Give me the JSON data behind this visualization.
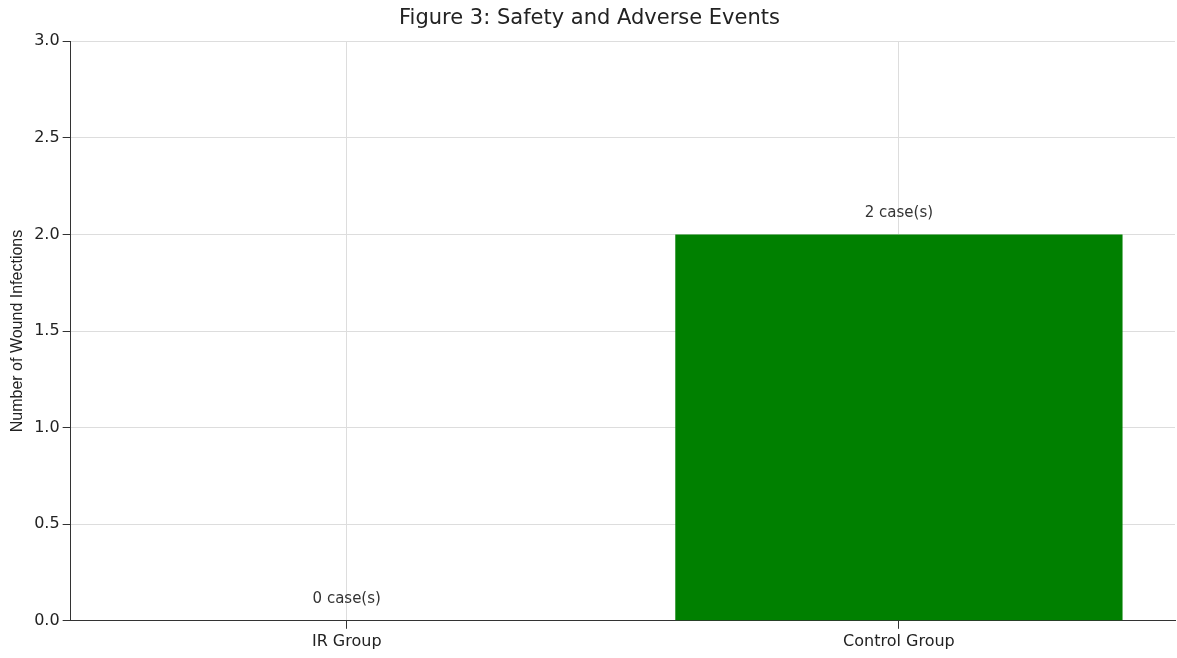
{
  "chart_data": {
    "type": "bar",
    "title": "Figure 3: Safety and Adverse Events",
    "ylabel": "Number of Wound Infections",
    "categories": [
      "IR Group",
      "Control Group"
    ],
    "values": [
      0,
      2
    ],
    "value_labels": [
      "0 case(s)",
      "2 case(s)"
    ],
    "color": "#008000",
    "ylim": [
      0,
      3
    ],
    "yticks": [
      {
        "value": 0,
        "label": "0.0"
      },
      {
        "value": 0.5,
        "label": "0.5"
      },
      {
        "value": 1,
        "label": "1.0"
      },
      {
        "value": 1.5,
        "label": "1.5"
      },
      {
        "value": 2,
        "label": "2.0"
      },
      {
        "value": 2.5,
        "label": "2.5"
      },
      {
        "value": 3,
        "label": "3.0"
      }
    ],
    "grid": true
  }
}
